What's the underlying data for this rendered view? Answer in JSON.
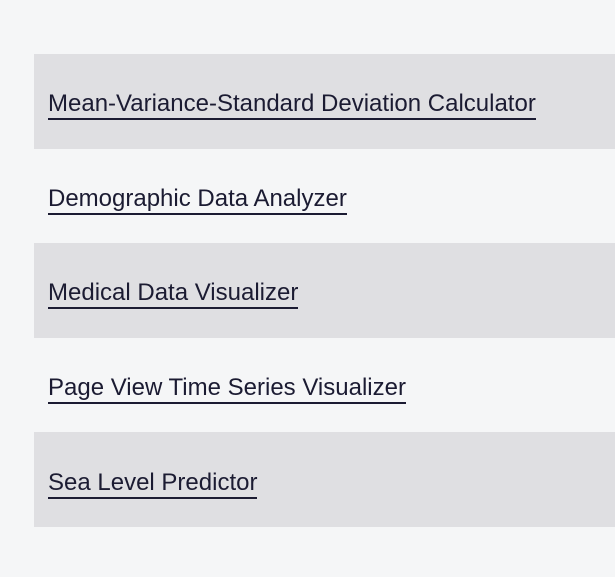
{
  "projects": {
    "items": [
      {
        "label": "Mean-Variance-Standard Deviation Calculator"
      },
      {
        "label": "Demographic Data Analyzer"
      },
      {
        "label": "Medical Data Visualizer"
      },
      {
        "label": "Page View Time Series Visualizer"
      },
      {
        "label": "Sea Level Predictor"
      }
    ]
  }
}
